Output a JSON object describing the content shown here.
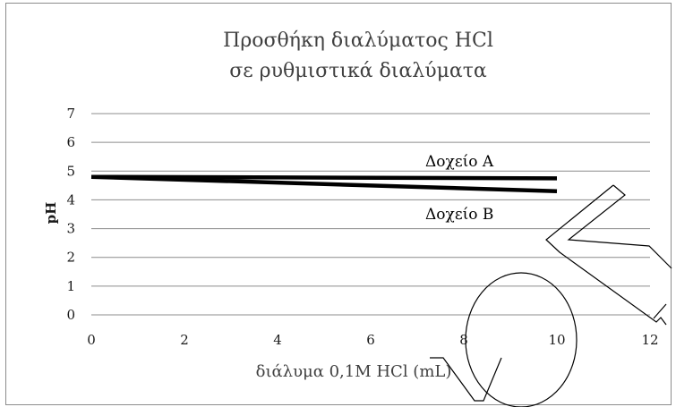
{
  "chart_data": {
    "type": "line",
    "title_line1": "Προσθήκη διαλύματος HCl",
    "title_line2": "σε ρυθμιστικά διαλύματα",
    "xlabel": "διάλυμα 0,1M  HCl (mL)",
    "ylabel": "pH",
    "xlim": [
      0,
      12
    ],
    "ylim": [
      0,
      7
    ],
    "x_ticks": [
      "0",
      "2",
      "4",
      "6",
      "8",
      "10",
      "12"
    ],
    "y_ticks": [
      "0",
      "1",
      "2",
      "3",
      "4",
      "5",
      "6",
      "7"
    ],
    "grid": true,
    "series": [
      {
        "name": "Δοχείο Α",
        "x": [
          0,
          10
        ],
        "y": [
          4.8,
          4.75
        ]
      },
      {
        "name": "Δοχείο Β",
        "x": [
          0,
          10
        ],
        "y": [
          4.8,
          4.3
        ]
      }
    ]
  }
}
